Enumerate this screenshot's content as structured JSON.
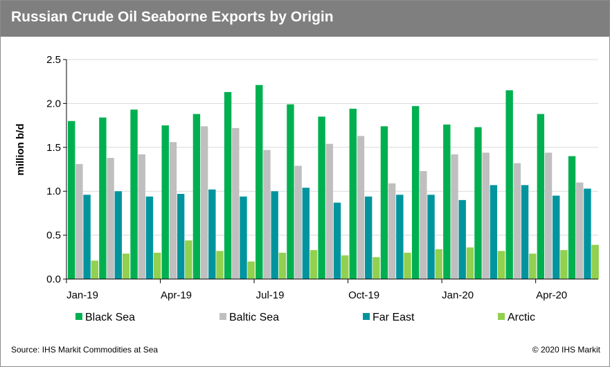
{
  "chart_data": {
    "type": "bar",
    "title": "Russian Crude Oil Seaborne Exports by Origin",
    "ylabel": "million b/d",
    "ylim": [
      0,
      2.5
    ],
    "yticks": [
      "0.0",
      "0.5",
      "1.0",
      "1.5",
      "2.0",
      "2.5"
    ],
    "grid": true,
    "legend_position": "bottom",
    "categories": [
      "Jan-19",
      "Feb-19",
      "Mar-19",
      "Apr-19",
      "May-19",
      "Jun-19",
      "Jul-19",
      "Aug-19",
      "Sep-19",
      "Oct-19",
      "Nov-19",
      "Dec-19",
      "Jan-20",
      "Feb-20",
      "Mar-20",
      "Apr-20",
      "May-20"
    ],
    "xtick_labels": [
      "Jan-19",
      "Apr-19",
      "Jul-19",
      "Oct-19",
      "Jan-20",
      "Apr-20"
    ],
    "series": [
      {
        "name": "Black Sea",
        "color": "#00b050",
        "values": [
          1.8,
          1.84,
          1.93,
          1.75,
          1.88,
          2.13,
          2.21,
          1.99,
          1.85,
          1.94,
          1.74,
          1.97,
          1.76,
          1.73,
          2.15,
          1.88,
          1.4
        ]
      },
      {
        "name": "Baltic Sea",
        "color": "#bfbfbf",
        "values": [
          1.31,
          1.38,
          1.42,
          1.56,
          1.74,
          1.72,
          1.47,
          1.29,
          1.54,
          1.63,
          1.09,
          1.23,
          1.42,
          1.44,
          1.32,
          1.44,
          1.1
        ]
      },
      {
        "name": "Far East",
        "color": "#00959e",
        "values": [
          0.96,
          1.0,
          0.94,
          0.97,
          1.02,
          0.94,
          1.0,
          1.04,
          0.87,
          0.94,
          0.96,
          0.96,
          0.9,
          1.07,
          1.07,
          0.95,
          1.03
        ]
      },
      {
        "name": "Arctic",
        "color": "#92d050",
        "values": [
          0.21,
          0.29,
          0.3,
          0.44,
          0.32,
          0.2,
          0.3,
          0.33,
          0.27,
          0.25,
          0.3,
          0.34,
          0.36,
          0.32,
          0.29,
          0.33,
          0.39
        ]
      }
    ]
  },
  "footer": {
    "source": "Source: IHS Markit Commodities at Sea",
    "copyright": "© 2020 IHS Markit"
  }
}
